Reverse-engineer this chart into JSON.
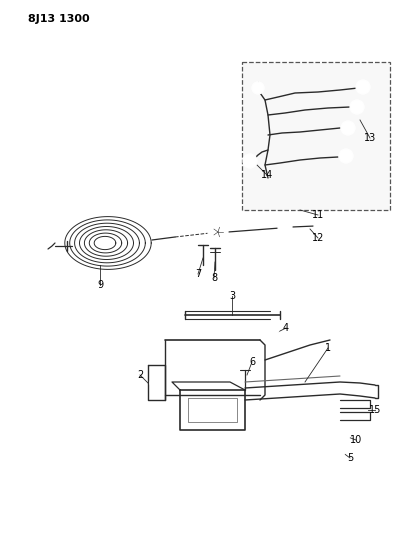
{
  "title": "8J13 1300",
  "bg_color": "#ffffff",
  "line_color": "#2a2a2a",
  "text_color": "#000000",
  "fig_width": 4.03,
  "fig_height": 5.33,
  "dpi": 100
}
